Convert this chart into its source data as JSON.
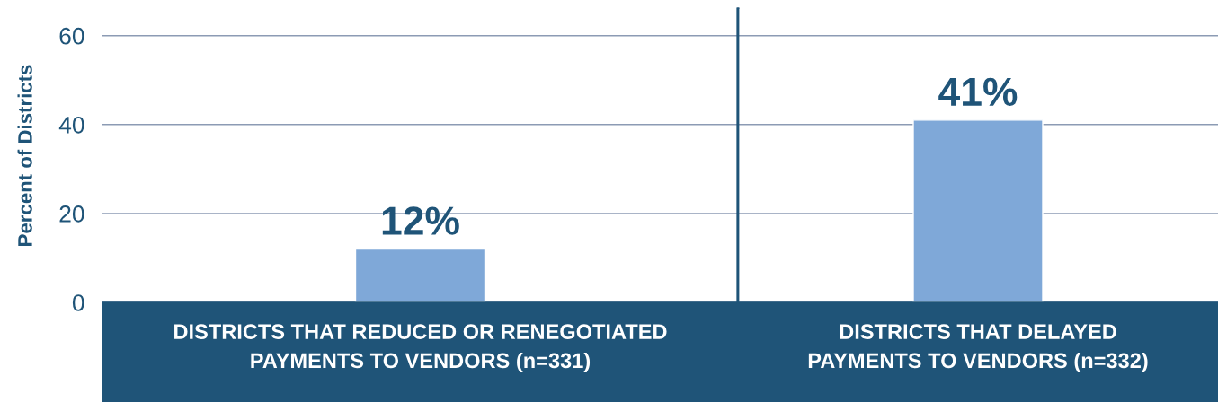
{
  "chart_data": [
    {
      "type": "bar",
      "ylabel": "Percent of Districts",
      "categories": [
        "DISTRICTS THAT REDUCED OR RENEGOTIATED\nPAYMENTS TO VENDORS (n=331)"
      ],
      "values": [
        12
      ],
      "color": "#7fa8d8",
      "value_labels": [
        "12%"
      ],
      "ylim": [
        0,
        66
      ],
      "yticks": [
        0,
        20,
        40,
        60
      ],
      "grid": "y"
    },
    {
      "type": "bar",
      "categories": [
        "DISTRICTS THAT DELAYED\nPAYMENTS TO VENDORS (n=332)"
      ],
      "values": [
        41
      ],
      "color": "#7fa8d8",
      "value_labels": [
        "41%"
      ],
      "ylim": [
        0,
        66
      ],
      "yticks": [
        0,
        20,
        40,
        60
      ],
      "grid": "y",
      "tick_labels": "x"
    }
  ]
}
